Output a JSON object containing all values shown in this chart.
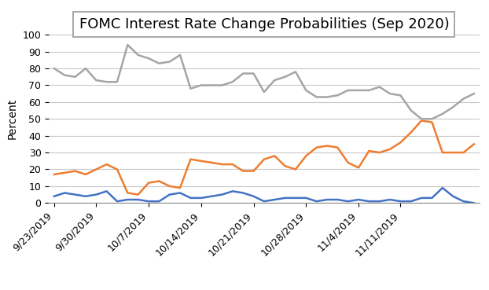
{
  "title": "FOMC Interest Rate Change Probabilities (Sep 2020)",
  "ylabel": "Percent",
  "ylim": [
    0,
    100
  ],
  "yticks": [
    0,
    10,
    20,
    30,
    40,
    50,
    60,
    70,
    80,
    90,
    100
  ],
  "x_labels": [
    "9/23/2019",
    "9/30/2019",
    "10/7/2019",
    "10/14/2019",
    "10/21/2019",
    "10/28/2019",
    "11/4/2019",
    "11/11/2019"
  ],
  "x_tick_positions": [
    0,
    4,
    9,
    14,
    19,
    24,
    29,
    33
  ],
  "hike": [
    4,
    6,
    5,
    4,
    5,
    7,
    1,
    2,
    2,
    1,
    1,
    5,
    6,
    3,
    3,
    4,
    5,
    7,
    6,
    4,
    1,
    2,
    3,
    3,
    3,
    1,
    2,
    2,
    1,
    2,
    1,
    1,
    2,
    1,
    1,
    3,
    3,
    9,
    4,
    1,
    0
  ],
  "no_change": [
    17,
    18,
    19,
    17,
    20,
    23,
    20,
    6,
    5,
    12,
    13,
    10,
    9,
    26,
    25,
    24,
    23,
    23,
    19,
    19,
    26,
    28,
    22,
    20,
    28,
    33,
    34,
    33,
    24,
    21,
    31,
    30,
    32,
    36,
    42,
    49,
    48,
    30,
    30,
    30,
    35
  ],
  "cut": [
    80,
    76,
    75,
    80,
    73,
    72,
    72,
    94,
    88,
    86,
    83,
    84,
    88,
    68,
    70,
    70,
    70,
    72,
    77,
    77,
    66,
    73,
    75,
    78,
    67,
    63,
    63,
    64,
    67,
    67,
    67,
    69,
    65,
    64,
    55,
    50,
    50,
    53,
    57,
    62,
    65
  ],
  "hike_color": "#4472C4",
  "no_change_color": "#ED7D31",
  "cut_color": "#A5A5A5",
  "background_color": "#FFFFFF",
  "grid_color": "#C8C8C8",
  "title_fontsize": 13,
  "axis_label_fontsize": 10,
  "tick_fontsize": 9,
  "legend_fontsize": 9,
  "line_width": 1.8
}
